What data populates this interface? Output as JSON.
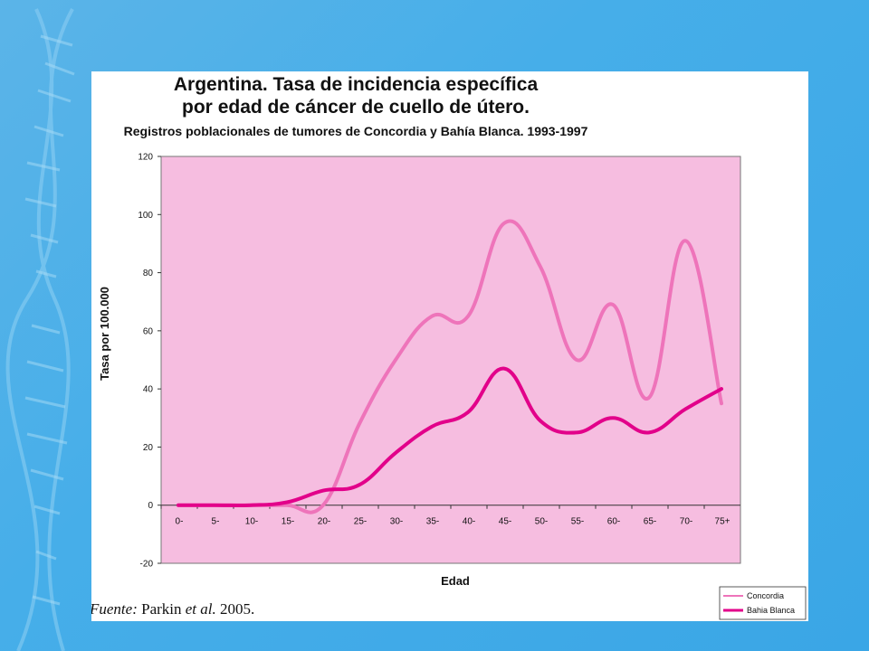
{
  "chart_data": {
    "type": "line",
    "title": "Argentina. Tasa de incidencia específica",
    "title_line2": "por edad de cáncer de cuello de útero.",
    "subtitle": "Registros poblacionales de tumores de Concordia y Bahía Blanca. 1993-1997",
    "xlabel": "Edad",
    "ylabel": "Tasa por 100.000",
    "categories": [
      "0-",
      "5-",
      "10-",
      "15-",
      "20-",
      "25-",
      "30-",
      "35-",
      "40-",
      "45-",
      "50-",
      "55-",
      "60-",
      "65-",
      "70-",
      "75+"
    ],
    "ylim": [
      -20,
      120
    ],
    "yticks": [
      -20,
      0,
      20,
      40,
      60,
      80,
      100,
      120
    ],
    "grid": false,
    "legend_position": "bottom-right",
    "series": [
      {
        "name": "Concordia",
        "color": "#ee74ba",
        "values": [
          0,
          0,
          0,
          0,
          0,
          28,
          50,
          65,
          65,
          97,
          82,
          50,
          69,
          37,
          91,
          35
        ]
      },
      {
        "name": "Bahia Blanca",
        "color": "#e2008a",
        "values": [
          0,
          0,
          0,
          1,
          5,
          7,
          18,
          27,
          32,
          47,
          29,
          25,
          30,
          25,
          33,
          40
        ]
      }
    ],
    "plot_background": "#f6bde0"
  },
  "source": {
    "label": "Fuente:",
    "text": " Parkin ",
    "etal": "et al.",
    "year": " 2005."
  },
  "colors": {
    "background": "#46aee9",
    "card": "#ffffff"
  }
}
